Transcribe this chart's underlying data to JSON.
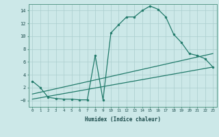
{
  "xlabel": "Humidex (Indice chaleur)",
  "bg_color": "#cce8e8",
  "grid_color": "#aacece",
  "line_color": "#217a6a",
  "series1_x": [
    0,
    1,
    2,
    3,
    4,
    5,
    6,
    7,
    8,
    9,
    10,
    11,
    12,
    13,
    14,
    15,
    16,
    17,
    18,
    19,
    20,
    21,
    22,
    23
  ],
  "series1_y": [
    3,
    2,
    0.5,
    0.3,
    0.2,
    0.2,
    0.1,
    0.1,
    7.0,
    0.1,
    10.5,
    11.8,
    13.0,
    13.0,
    14.0,
    14.7,
    14.2,
    13.0,
    10.3,
    9.0,
    7.3,
    7.0,
    6.5,
    5.2
  ],
  "series2_x": [
    0,
    23
  ],
  "series2_y": [
    0.2,
    5.2
  ],
  "series3_x": [
    0,
    23
  ],
  "series3_y": [
    1.0,
    7.3
  ],
  "ylim": [
    -1,
    15
  ],
  "xlim": [
    -0.5,
    23.5
  ],
  "yticks": [
    0,
    2,
    4,
    6,
    8,
    10,
    12,
    14
  ],
  "ytick_labels": [
    "−0",
    "2",
    "4",
    "6",
    "8",
    "10",
    "12",
    "14"
  ],
  "xticks": [
    0,
    1,
    2,
    3,
    4,
    5,
    6,
    7,
    8,
    9,
    10,
    11,
    12,
    13,
    14,
    15,
    16,
    17,
    18,
    19,
    20,
    21,
    22,
    23
  ],
  "xtick_labels": [
    "0",
    "1",
    "2",
    "3",
    "4",
    "5",
    "6",
    "7",
    "8",
    "9",
    "10",
    "11",
    "12",
    "13",
    "14",
    "15",
    "16",
    "17",
    "18",
    "19",
    "20",
    "21",
    "22",
    "23"
  ]
}
